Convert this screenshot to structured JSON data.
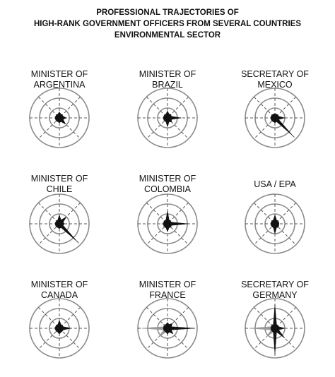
{
  "header": {
    "title_lines": [
      "PROFESSIONAL TRAJECTORIES OF",
      "HIGH-RANK GOVERNMENT OFFICERS FROM SEVERAL COUNTRIES",
      "ENVIRONMENTAL SECTOR"
    ]
  },
  "colors": {
    "ring": "#8c8c8c",
    "axis": "#555555",
    "series_a": "#111111",
    "series_b": "#999999"
  },
  "chart_data": {
    "type": "radar",
    "title": "PROFESSIONAL TRAJECTORIES OF HIGH-RANK GOVERNMENT OFFICERS FROM SEVERAL COUNTRIES ENVIRONMENTAL SECTOR",
    "rings": 3,
    "rmax": 3,
    "axes": [
      "NE",
      "E",
      "SE",
      "S",
      "SW",
      "W",
      "NW",
      "N"
    ],
    "grid": true,
    "legend": "none",
    "panels": [
      {
        "label": [
          "MINISTER OF",
          "ARGENTINA"
        ],
        "black": [
          0.4,
          0.7,
          0.9,
          0.5,
          0.2,
          0.2,
          0.3,
          0.6
        ],
        "gray": [
          0.2,
          0.2,
          0.3,
          0.4,
          0.5,
          0.5,
          0.4,
          0.3
        ]
      },
      {
        "label": [
          "MINISTER OF",
          "BRAZIL"
        ],
        "black": [
          0.5,
          1.4,
          0.6,
          0.9,
          0.3,
          0.2,
          0.3,
          0.7
        ],
        "gray": [
          0.2,
          0.2,
          0.3,
          0.5,
          0.5,
          0.5,
          0.4,
          0.3
        ]
      },
      {
        "label": [
          "SECRETARY OF",
          "MEXICO"
        ],
        "black": [
          0.4,
          1.0,
          2.6,
          0.5,
          0.3,
          0.2,
          0.3,
          0.4
        ],
        "gray": [
          0.2,
          0.2,
          0.3,
          0.4,
          0.5,
          0.5,
          0.4,
          0.3
        ]
      },
      {
        "label": [
          "MINISTER OF",
          "CHILE"
        ],
        "black": [
          1.0,
          0.5,
          2.6,
          0.5,
          0.3,
          0.2,
          0.3,
          0.9
        ],
        "gray": [
          0.2,
          0.2,
          0.3,
          0.4,
          0.5,
          0.5,
          0.4,
          0.3
        ]
      },
      {
        "label": [
          "MINISTER OF",
          "COLOMBIA"
        ],
        "black": [
          0.4,
          2.1,
          0.5,
          0.8,
          0.4,
          0.3,
          0.4,
          1.3
        ],
        "gray": [
          0.3,
          0.3,
          0.3,
          0.5,
          0.6,
          0.6,
          0.5,
          0.3
        ]
      },
      {
        "label": [
          "USA / EPA"
        ],
        "black": [
          0.3,
          0.4,
          0.5,
          1.0,
          0.3,
          0.2,
          0.3,
          0.9
        ],
        "gray": [
          0.2,
          0.2,
          0.2,
          0.3,
          0.3,
          0.3,
          0.3,
          0.2
        ]
      },
      {
        "label": [
          "MINISTER OF",
          "CANADA"
        ],
        "black": [
          0.4,
          1.2,
          0.4,
          0.6,
          0.3,
          0.2,
          0.3,
          0.8
        ],
        "gray": [
          0.2,
          0.2,
          0.3,
          0.5,
          0.5,
          0.6,
          0.4,
          0.3
        ]
      },
      {
        "label": [
          "MINISTER OF",
          "FRANCE"
        ],
        "black": [
          0.7,
          2.7,
          0.8,
          0.6,
          0.4,
          0.3,
          0.4,
          0.6
        ],
        "gray": [
          0.3,
          0.3,
          0.3,
          0.5,
          1.4,
          2.6,
          0.6,
          0.3
        ]
      },
      {
        "label": [
          "SECRETARY OF",
          "GERMANY"
        ],
        "black": [
          0.4,
          1.0,
          1.4,
          2.6,
          0.4,
          0.3,
          0.3,
          2.4
        ],
        "gray": [
          0.3,
          0.3,
          0.3,
          0.5,
          1.2,
          2.6,
          0.6,
          0.3
        ]
      }
    ]
  }
}
